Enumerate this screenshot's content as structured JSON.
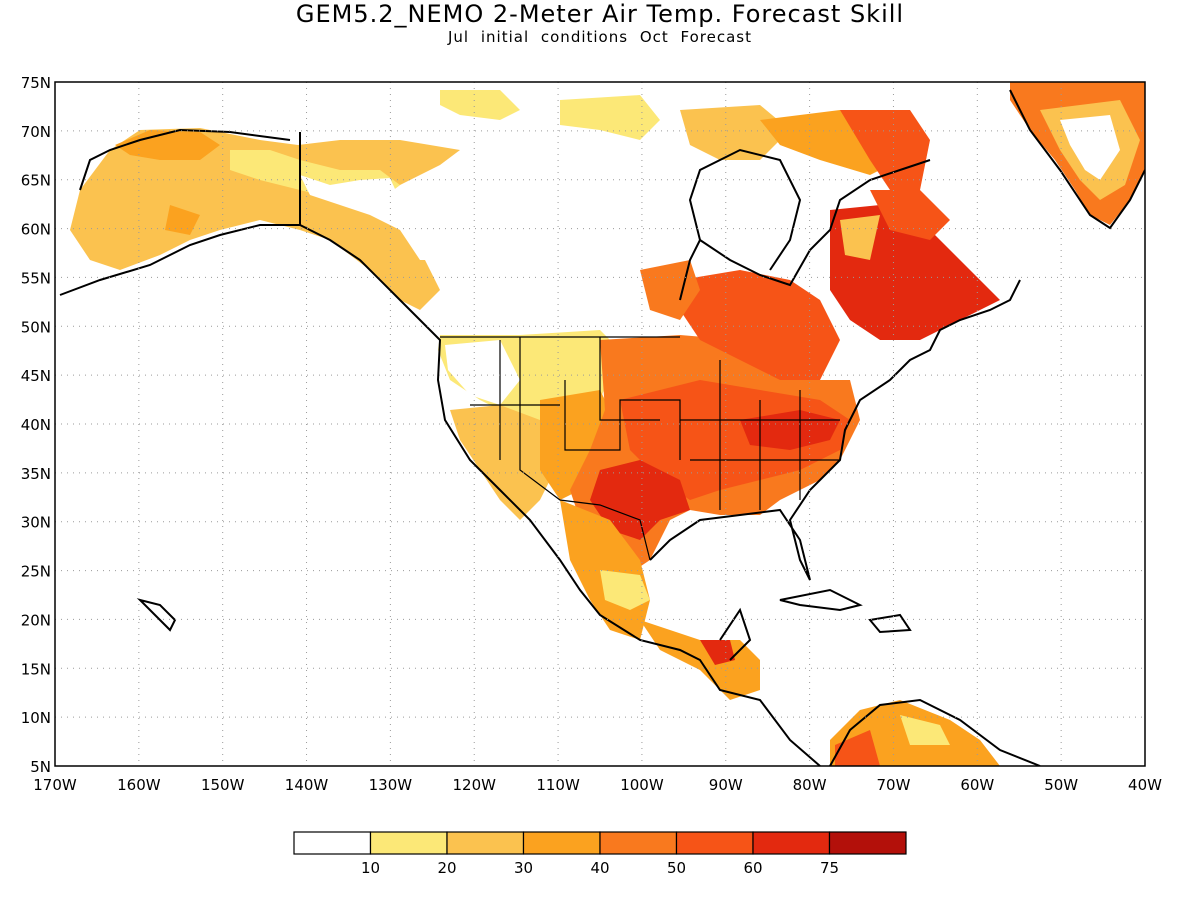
{
  "title": "GEM5.2_NEMO 2-Meter Air Temp. Forecast Skill",
  "subtitle": "Jul initial conditions  Oct Forecast",
  "map": {
    "lon_range": [
      -170,
      -40
    ],
    "lat_range": [
      5,
      75
    ],
    "lat_ticks": [
      "75N",
      "70N",
      "65N",
      "60N",
      "55N",
      "50N",
      "45N",
      "40N",
      "35N",
      "30N",
      "25N",
      "20N",
      "15N",
      "10N",
      "5N"
    ],
    "lon_ticks": [
      "170W",
      "160W",
      "150W",
      "140W",
      "130W",
      "120W",
      "110W",
      "100W",
      "90W",
      "80W",
      "70W",
      "60W",
      "50W",
      "40W"
    ],
    "grid": "dotted"
  },
  "colorbar": {
    "colors": [
      "#ffffff",
      "#fce877",
      "#fbc24f",
      "#fba21f",
      "#f9791e",
      "#f65417",
      "#e3290f",
      "#b3100a"
    ],
    "labels": [
      "10",
      "20",
      "30",
      "40",
      "50",
      "60",
      "75"
    ]
  }
}
